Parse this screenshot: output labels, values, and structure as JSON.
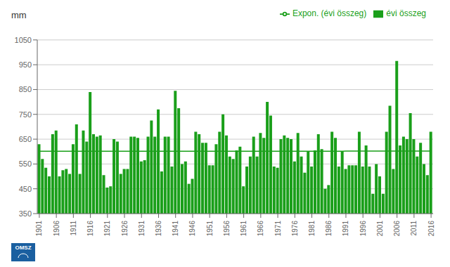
{
  "chart_data": {
    "type": "bar",
    "y_label": "mm",
    "annotation": "OMSZ",
    "x": [
      1901,
      1902,
      1903,
      1904,
      1905,
      1906,
      1907,
      1908,
      1909,
      1910,
      1911,
      1912,
      1913,
      1914,
      1915,
      1916,
      1917,
      1918,
      1919,
      1920,
      1921,
      1922,
      1923,
      1924,
      1925,
      1926,
      1927,
      1928,
      1929,
      1930,
      1931,
      1932,
      1933,
      1934,
      1935,
      1936,
      1937,
      1938,
      1939,
      1940,
      1941,
      1942,
      1943,
      1944,
      1945,
      1946,
      1947,
      1948,
      1949,
      1950,
      1951,
      1952,
      1953,
      1954,
      1955,
      1956,
      1957,
      1958,
      1959,
      1960,
      1961,
      1962,
      1963,
      1964,
      1965,
      1966,
      1967,
      1968,
      1969,
      1970,
      1971,
      1972,
      1973,
      1974,
      1975,
      1976,
      1977,
      1978,
      1979,
      1980,
      1981,
      1982,
      1983,
      1984,
      1985,
      1986,
      1987,
      1988,
      1989,
      1990,
      1991,
      1992,
      1993,
      1994,
      1995,
      1996,
      1997,
      1998,
      1999,
      2000,
      2001,
      2002,
      2003,
      2004,
      2005,
      2006,
      2007,
      2008,
      2009,
      2010,
      2011,
      2012,
      2013,
      2014,
      2015,
      2016
    ],
    "series": [
      {
        "name": "évi összeg",
        "type": "bar",
        "color": "#1a9f1a",
        "values": [
          630,
          570,
          535,
          500,
          670,
          685,
          500,
          525,
          530,
          510,
          630,
          710,
          510,
          685,
          640,
          840,
          670,
          660,
          665,
          505,
          455,
          460,
          650,
          640,
          510,
          530,
          530,
          660,
          660,
          655,
          560,
          565,
          660,
          725,
          660,
          770,
          520,
          660,
          660,
          540,
          845,
          775,
          550,
          560,
          470,
          490,
          680,
          670,
          635,
          635,
          545,
          545,
          630,
          680,
          750,
          665,
          580,
          570,
          605,
          620,
          460,
          540,
          580,
          660,
          580,
          675,
          655,
          800,
          745,
          540,
          535,
          650,
          665,
          655,
          650,
          560,
          675,
          580,
          515,
          600,
          540,
          605,
          670,
          610,
          450,
          465,
          680,
          655,
          540,
          600,
          530,
          545,
          545,
          545,
          680,
          540,
          625,
          540,
          430,
          550,
          500,
          430,
          680,
          785,
          530,
          965,
          625,
          660,
          650,
          755,
          650,
          580,
          635,
          550,
          505,
          680
        ]
      },
      {
        "name": "Expon. (évi összeg)",
        "type": "line",
        "color": "#1a9f1a",
        "values": [
          601.39,
          601.39,
          601.39,
          601.4,
          601.4,
          601.4,
          601.41,
          601.41,
          601.41,
          601.42,
          601.42,
          601.42,
          601.43,
          601.43,
          601.43,
          601.44,
          601.44,
          601.44,
          601.45,
          601.45,
          601.45,
          601.46,
          601.46,
          601.46,
          601.47,
          601.47,
          601.48,
          601.48,
          601.48,
          601.49,
          601.49,
          601.49,
          601.5,
          601.5,
          601.5,
          601.51,
          601.51,
          601.51,
          601.52,
          601.52,
          601.52,
          601.53,
          601.53,
          601.53,
          601.54,
          601.54,
          601.54,
          601.55,
          601.55,
          601.56,
          601.56,
          601.56,
          601.57,
          601.57,
          601.57,
          601.58,
          601.58,
          601.58,
          601.59,
          601.59,
          601.59,
          601.6,
          601.6,
          601.6,
          601.61,
          601.61,
          601.61,
          601.62,
          601.62,
          601.62,
          601.63,
          601.63,
          601.64,
          601.64,
          601.64,
          601.65,
          601.65,
          601.65,
          601.66,
          601.66,
          601.66,
          601.67,
          601.67,
          601.67,
          601.68,
          601.68,
          601.68,
          601.69,
          601.69,
          601.69,
          601.7,
          601.7,
          601.7,
          601.71,
          601.71,
          601.71,
          601.72,
          601.72,
          601.73,
          601.73,
          601.73,
          601.74,
          601.74,
          601.74,
          601.75,
          601.75,
          601.75,
          601.76,
          601.76,
          601.76,
          601.77,
          601.77,
          601.77,
          601.78,
          601.78,
          601.78
        ]
      }
    ],
    "xlim": [
      1900.4,
      2016.6
    ],
    "xticks": [
      1901,
      1906,
      1911,
      1916,
      1921,
      1926,
      1931,
      1936,
      1941,
      1946,
      1951,
      1956,
      1961,
      1966,
      1971,
      1976,
      1981,
      1986,
      1991,
      1996,
      2001,
      2006,
      2011,
      2016
    ],
    "ylim": [
      350,
      1050
    ],
    "yticks": [
      350,
      450,
      550,
      650,
      750,
      850,
      950,
      1050
    ],
    "grid": true,
    "legend": "upper right"
  }
}
